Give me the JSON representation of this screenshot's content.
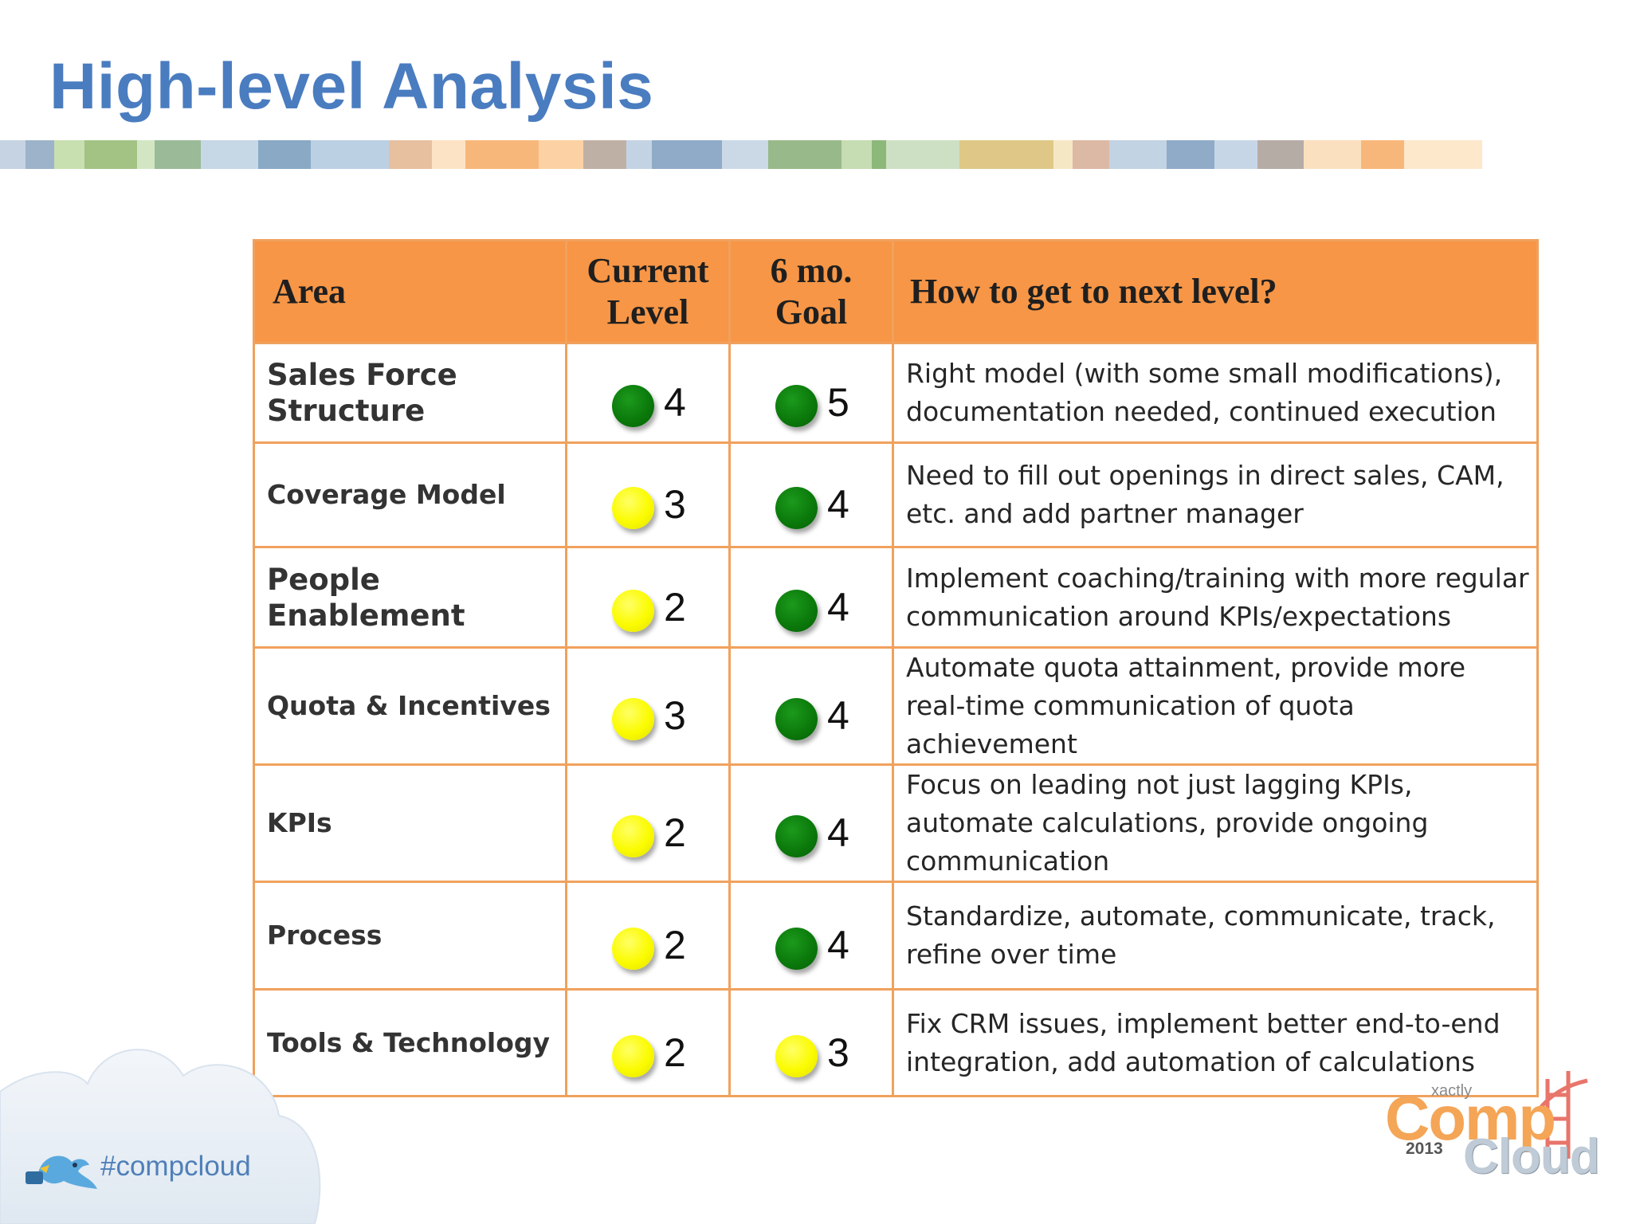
{
  "slide": {
    "title": "High-level Analysis",
    "stripe_colors": [
      "#c6d3e3",
      "#9cb3c9",
      "#c8dfb0",
      "#a3c385",
      "#d2e6c4",
      "#9bbb98",
      "#c6d7e6",
      "#89a9c5",
      "#bcd0e4",
      "#e7c0a0",
      "#fde3c6",
      "#f8b77a",
      "#fcd2a5",
      "#bfb0a6",
      "#c4d3e3",
      "#8fabc7",
      "#cbd9e7",
      "#98b98a",
      "#c6dcb2",
      "#8cb87a",
      "#cde0c3",
      "#dfc887",
      "#f6e7c4",
      "#dcb9a5",
      "#c2d3e3",
      "#8fabc7",
      "#c7d6e6",
      "#b6aca6",
      "#fbe0bf",
      "#f8b77a",
      "#fde8cc"
    ]
  },
  "table": {
    "headers": {
      "area": "Area",
      "current_level": "Current Level",
      "goal": "6 mo. Goal",
      "how": "How to get to next level?"
    },
    "rows": [
      {
        "area": "Sales Force Structure",
        "current": "4",
        "current_color": "green",
        "goal": "5",
        "goal_color": "green",
        "how": "Right model (with some small modifications), documentation needed, continued execution"
      },
      {
        "area": "Coverage Model",
        "current": "3",
        "current_color": "yellow",
        "goal": "4",
        "goal_color": "green",
        "how": "Need to fill out openings in direct sales, CAM, etc. and add partner manager"
      },
      {
        "area": "People Enablement",
        "current": "2",
        "current_color": "yellow",
        "goal": "4",
        "goal_color": "green",
        "how": "Implement coaching/training with more regular communication around KPIs/expectations"
      },
      {
        "area": "Quota & Incentives",
        "current": "3",
        "current_color": "yellow",
        "goal": "4",
        "goal_color": "green",
        "how": "Automate quota attainment, provide more real-time communication of quota achievement"
      },
      {
        "area": "KPIs",
        "current": "2",
        "current_color": "yellow",
        "goal": "4",
        "goal_color": "green",
        "how": "Focus on leading not just lagging KPIs, automate calculations, provide ongoing communication"
      },
      {
        "area": "Process",
        "current": "2",
        "current_color": "yellow",
        "goal": "4",
        "goal_color": "green",
        "how": "Standardize, automate, communicate, track, refine over time"
      },
      {
        "area": "Tools & Technology",
        "current": "2",
        "current_color": "yellow",
        "goal": "3",
        "goal_color": "yellow",
        "how": "Fix CRM issues, implement better end-to-end integration, add automation of calculations"
      }
    ]
  },
  "footer": {
    "hashtag": "#compcloud",
    "logo": {
      "brand": "xactly",
      "word1": "Comp",
      "word2": "Cloud",
      "year": "2013"
    }
  }
}
